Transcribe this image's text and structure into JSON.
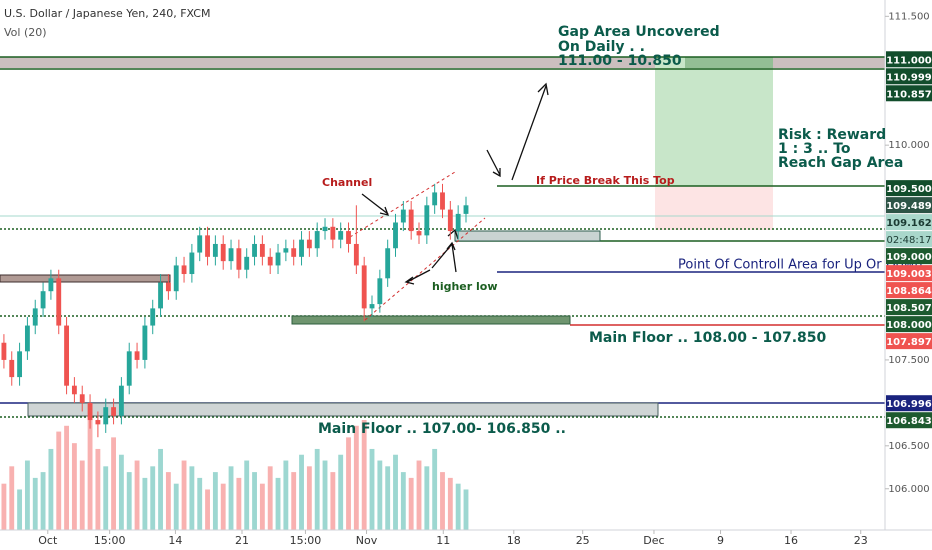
{
  "chart_data": {
    "type": "candlestick",
    "title": "U.S. Dollar / Japanese Yen, 240, FXCM",
    "subtitle": "Vol (20)",
    "x": [
      0.5,
      1.5,
      2.5,
      3.5,
      4.5,
      5.5,
      6.5,
      7.5,
      8.5,
      9.5,
      10.5,
      11.5,
      12.5,
      13.5,
      14.5,
      15.5,
      16.5,
      17.5,
      18.5,
      19.5,
      20.5,
      21.5,
      22.5,
      23.5,
      24.5,
      25.5,
      26.5,
      27.5,
      28.5,
      29.5,
      30.5,
      31.5,
      32.5,
      33.5,
      34.5,
      35.5,
      36.5,
      37.5,
      38.5,
      39.5,
      40.5,
      41.5,
      42.5,
      43.5,
      44.5,
      45.5,
      46.5,
      47.5,
      48.5,
      49.5,
      50.5,
      51.5,
      52.5,
      53.5,
      54.5,
      55.5,
      56.5,
      57.5,
      58.5,
      59.5
    ],
    "open": [
      107.7,
      107.5,
      107.3,
      107.6,
      107.9,
      108.1,
      108.3,
      108.45,
      107.9,
      107.2,
      107.1,
      107.0,
      106.8,
      106.75,
      106.95,
      106.85,
      107.2,
      107.6,
      107.5,
      107.9,
      108.1,
      108.4,
      108.3,
      108.6,
      108.5,
      108.75,
      108.95,
      108.7,
      108.85,
      108.65,
      108.8,
      108.55,
      108.7,
      108.85,
      108.7,
      108.6,
      108.75,
      108.8,
      108.7,
      108.9,
      108.8,
      109.0,
      109.05,
      108.9,
      109.0,
      108.85,
      108.6,
      108.1,
      108.15,
      108.45,
      108.8,
      109.1,
      109.25,
      109.0,
      108.95,
      109.3,
      109.45,
      109.25,
      109.0,
      109.2
    ],
    "high": [
      107.8,
      107.6,
      107.7,
      108.0,
      108.2,
      108.4,
      108.55,
      108.55,
      108.0,
      107.3,
      107.2,
      107.1,
      106.9,
      107.05,
      107.05,
      107.3,
      107.7,
      107.7,
      108.0,
      108.2,
      108.5,
      108.5,
      108.7,
      108.7,
      108.85,
      109.05,
      109.05,
      108.95,
      108.95,
      108.9,
      108.9,
      108.8,
      108.95,
      108.95,
      108.8,
      108.85,
      108.9,
      108.9,
      109.0,
      109.0,
      109.1,
      109.15,
      109.15,
      109.1,
      109.1,
      109.3,
      108.7,
      108.25,
      108.55,
      108.9,
      109.2,
      109.35,
      109.35,
      109.1,
      109.4,
      109.55,
      109.55,
      109.35,
      109.3,
      109.4
    ],
    "low": [
      107.4,
      107.2,
      107.2,
      107.5,
      107.8,
      108.0,
      108.2,
      107.8,
      107.1,
      107.0,
      106.9,
      106.7,
      106.6,
      106.65,
      106.75,
      106.75,
      107.1,
      107.4,
      107.4,
      107.8,
      108.0,
      108.2,
      108.2,
      108.4,
      108.4,
      108.65,
      108.6,
      108.6,
      108.55,
      108.55,
      108.45,
      108.45,
      108.6,
      108.6,
      108.5,
      108.5,
      108.65,
      108.6,
      108.6,
      108.7,
      108.7,
      108.9,
      108.8,
      108.8,
      108.75,
      108.5,
      107.95,
      108.0,
      108.05,
      108.35,
      108.7,
      109.0,
      108.9,
      108.85,
      108.85,
      109.2,
      109.15,
      108.9,
      108.9,
      109.1
    ],
    "close": [
      107.5,
      107.3,
      107.6,
      107.9,
      108.1,
      108.3,
      108.45,
      107.9,
      107.2,
      107.1,
      107.0,
      106.8,
      106.75,
      106.95,
      106.85,
      107.2,
      107.6,
      107.5,
      107.9,
      108.1,
      108.4,
      108.3,
      108.6,
      108.5,
      108.75,
      108.95,
      108.7,
      108.85,
      108.65,
      108.8,
      108.55,
      108.7,
      108.85,
      108.7,
      108.6,
      108.75,
      108.8,
      108.7,
      108.9,
      108.8,
      109.0,
      109.05,
      108.9,
      109.0,
      108.85,
      108.6,
      108.1,
      108.15,
      108.45,
      108.8,
      109.1,
      109.25,
      109.0,
      108.95,
      109.3,
      109.45,
      109.25,
      109.0,
      109.2,
      109.3
    ],
    "volume": [
      40,
      55,
      35,
      60,
      45,
      50,
      70,
      85,
      90,
      75,
      60,
      95,
      70,
      55,
      80,
      65,
      50,
      60,
      45,
      55,
      70,
      50,
      40,
      60,
      55,
      45,
      35,
      50,
      40,
      55,
      45,
      60,
      50,
      40,
      55,
      45,
      60,
      50,
      65,
      55,
      70,
      60,
      50,
      65,
      80,
      90,
      95,
      70,
      60,
      55,
      65,
      50,
      45,
      60,
      55,
      70,
      50,
      45,
      40,
      35
    ],
    "up_color": "#26a69a",
    "down_color": "#ef5350",
    "xlim": [
      0,
      113
    ],
    "ylim": [
      105.52,
      111.69
    ],
    "xticks": [
      {
        "value": 6.1,
        "label": "Oct"
      },
      {
        "value": 14.0,
        "label": "15:00"
      },
      {
        "value": 22.4,
        "label": "14"
      },
      {
        "value": 30.9,
        "label": "21"
      },
      {
        "value": 39.0,
        "label": "15:00"
      },
      {
        "value": 46.8,
        "label": "Nov"
      },
      {
        "value": 56.6,
        "label": "11"
      },
      {
        "value": 65.6,
        "label": "18"
      },
      {
        "value": 74.4,
        "label": "25"
      },
      {
        "value": 83.5,
        "label": "Dec"
      },
      {
        "value": 92.0,
        "label": "9"
      },
      {
        "value": 101.0,
        "label": "16"
      },
      {
        "value": 109.9,
        "label": "23"
      }
    ],
    "yticks": [
      {
        "value": 111.5,
        "label": "111.500"
      },
      {
        "value": 110.0,
        "label": "110.000"
      },
      {
        "value": 107.5,
        "label": "107.500"
      },
      {
        "value": 106.5,
        "label": "106.500"
      },
      {
        "value": 106.0,
        "label": "106.000"
      }
    ],
    "price_tags": [
      {
        "value": 111.0,
        "label": "111.000",
        "color": "#124d2c"
      },
      {
        "value": 110.999,
        "label": "110.999",
        "color": "#124d2c"
      },
      {
        "value": 110.857,
        "label": "110.857",
        "color": "#124d2c"
      },
      {
        "value": 109.5,
        "label": "109.500",
        "color": "#124d2c"
      },
      {
        "value": 109.489,
        "label": "109.489",
        "color": "#2d5446"
      },
      {
        "value": 109.162,
        "label": "109.162",
        "color": "#a9d7cb"
      },
      {
        "value": 109.0,
        "label": "109.000",
        "color": "#1d5a2f"
      },
      {
        "value": 109.003,
        "label": "109.003",
        "color": "#ef5350"
      },
      {
        "value": 108.864,
        "label": "108.864",
        "color": "#ef5350"
      },
      {
        "value": 108.507,
        "label": "108.507",
        "color": "#1d5a2f"
      },
      {
        "value": 108.0,
        "label": "108.000",
        "color": "#1d5a2f"
      },
      {
        "value": 107.897,
        "label": "107.897",
        "color": "#ef5350"
      },
      {
        "value": 106.996,
        "label": "106.996",
        "color": "#1a237e"
      },
      {
        "value": 106.843,
        "label": "106.843",
        "color": "#1d5a2f"
      }
    ],
    "countdown": "02:48:17",
    "annotations": {
      "gap_1": "Gap Area Uncovered",
      "gap_2": "On Daily . .",
      "gap_3": "111.00 - 10.850",
      "rr_1": "Risk : Reward",
      "rr_2": "1 : 3 .. To",
      "rr_3": "Reach Gap Area",
      "break": "If Price Break This Top",
      "channel": "Channel",
      "higher_low": "higher low",
      "poc": "Point Of Controll Area for Up Or Down",
      "floor_1": "Main Floor .. 108.00 - 107.850",
      "floor_2": "Main Floor .. 107.00- 106.850 .."
    }
  }
}
